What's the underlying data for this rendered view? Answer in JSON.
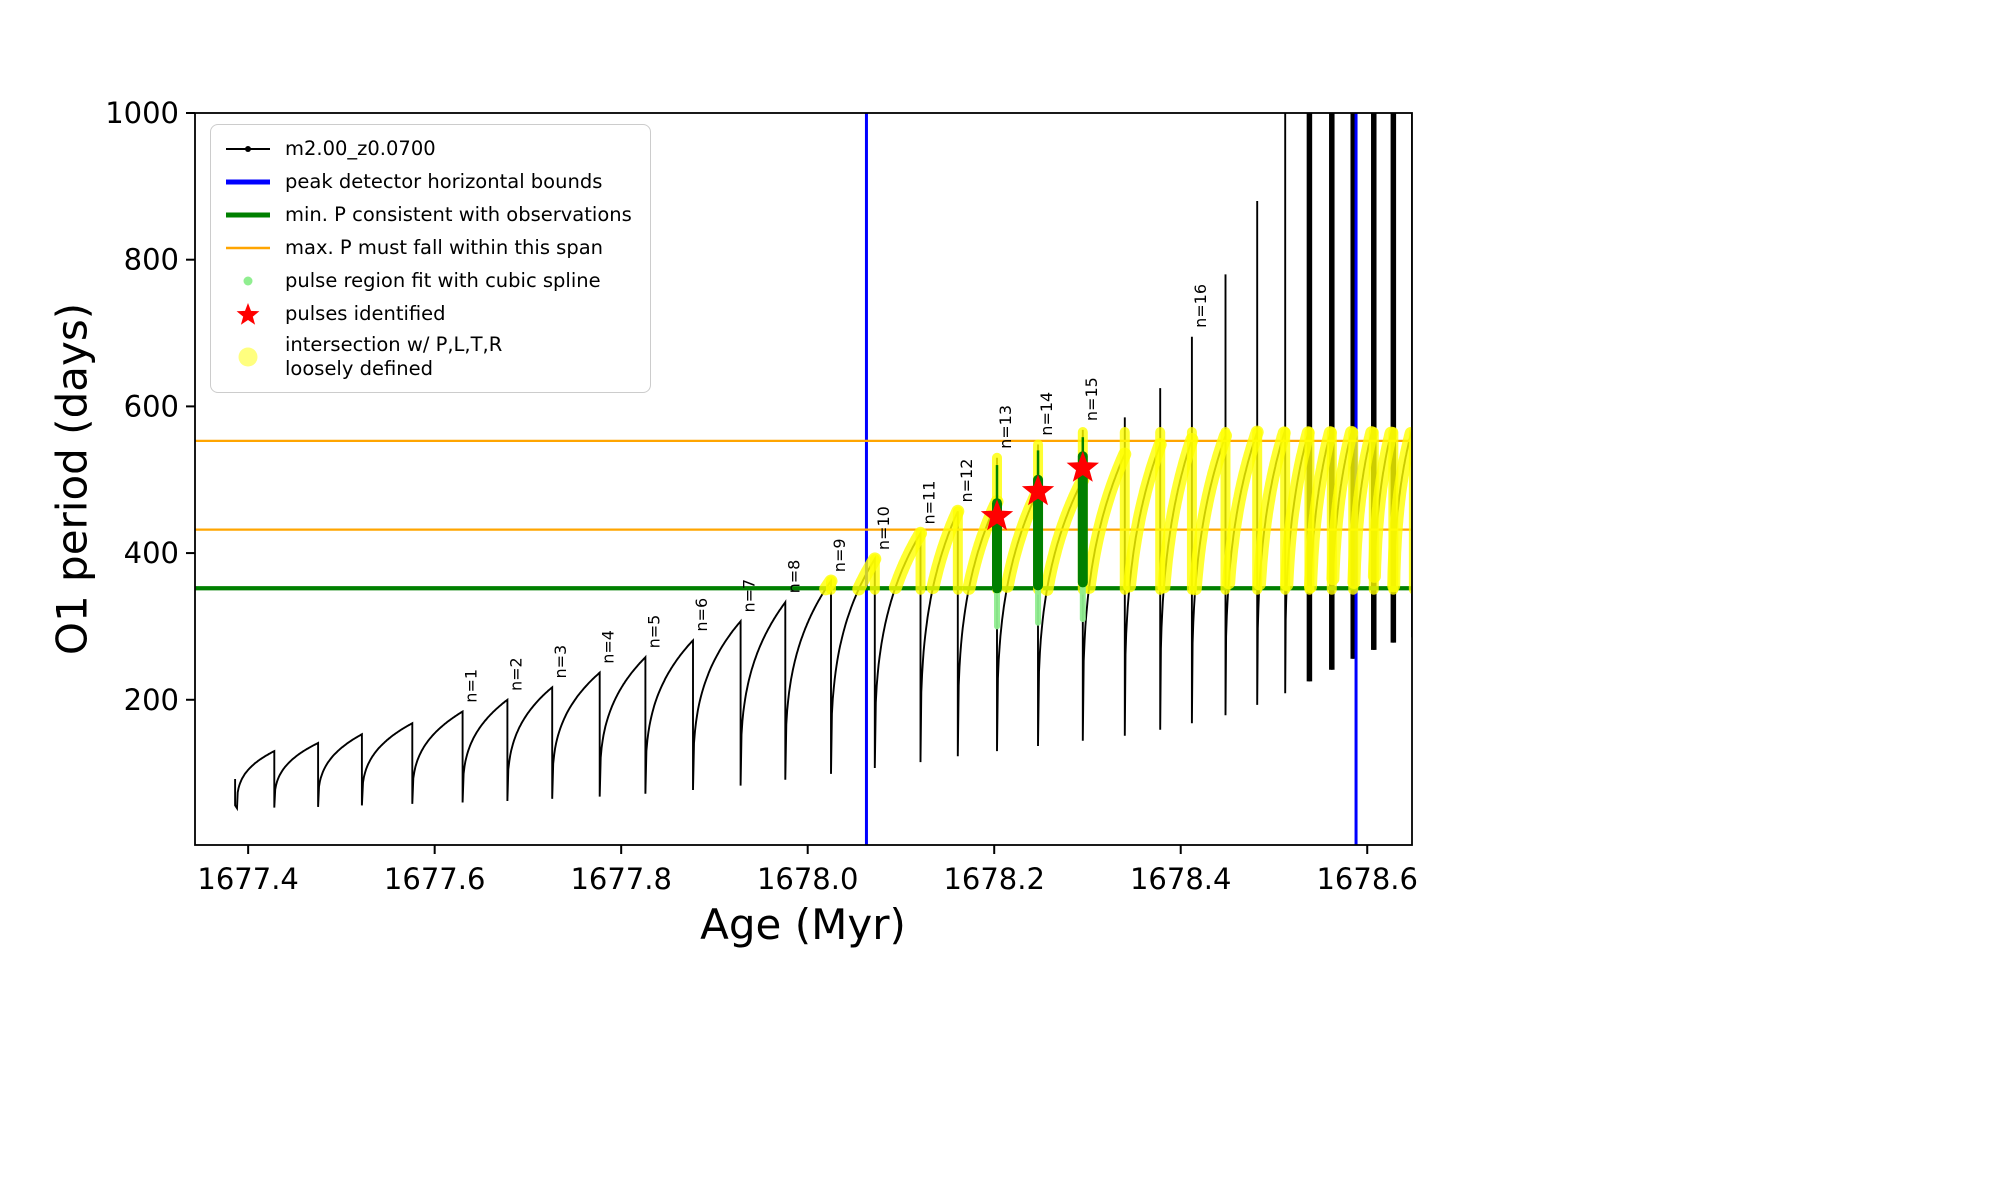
{
  "chart_data": {
    "type": "line",
    "title": "",
    "xlabel": "Age (Myr)",
    "ylabel": "O1 period (days)",
    "xlim": [
      1677.343,
      1678.648
    ],
    "ylim": [
      2,
      1000
    ],
    "x_start": 1677.388,
    "end_min": 285,
    "grid": false,
    "legend_position": "upper-left",
    "xticks": [
      1677.4,
      1677.6,
      1677.8,
      1678.0,
      1678.2,
      1678.4,
      1678.6
    ],
    "xtick_labels": [
      "1677.4",
      "1677.6",
      "1677.8",
      "1678.0",
      "1678.2",
      "1678.4",
      "1678.6"
    ],
    "yticks": [
      200,
      400,
      600,
      800,
      1000
    ],
    "ytick_labels": [
      "200",
      "400",
      "600",
      "800",
      "1000"
    ],
    "series_name": "m2.00_z0.0700",
    "peak_bounds_x": [
      1678.063,
      1678.588
    ],
    "min_p_y": 352,
    "max_p_span_y": [
      432,
      553
    ],
    "yellow_band": {
      "ymin": 350,
      "ymax": 565,
      "xmin": 1677.95
    },
    "colors": {
      "curve": "#000000",
      "bounds": "#0000ff",
      "min_p": "#008000",
      "max_p": "#ffa500",
      "spline": "#90ee90",
      "star": "#ff0000",
      "intersection": "#ffff00"
    },
    "cycles": [
      [
        1677.428,
        52,
        130,
        130,
        ""
      ],
      [
        1677.475,
        53,
        141,
        141,
        ""
      ],
      [
        1677.522,
        54,
        153,
        153,
        ""
      ],
      [
        1677.576,
        56,
        168,
        168,
        ""
      ],
      [
        1677.63,
        58,
        184,
        184,
        "n=1"
      ],
      [
        1677.678,
        60,
        200,
        200,
        "n=2"
      ],
      [
        1677.726,
        62,
        217,
        217,
        "n=3"
      ],
      [
        1677.777,
        65,
        237,
        237,
        "n=4"
      ],
      [
        1677.826,
        68,
        258,
        258,
        "n=5"
      ],
      [
        1677.877,
        72,
        281,
        281,
        "n=6"
      ],
      [
        1677.928,
        77,
        307,
        307,
        "n=7"
      ],
      [
        1677.976,
        83,
        333,
        333,
        "n=8"
      ],
      [
        1678.025,
        91,
        362,
        362,
        "n=9"
      ],
      [
        1678.072,
        99,
        392,
        392,
        "n=10"
      ],
      [
        1678.121,
        107,
        427,
        427,
        "n=11"
      ],
      [
        1678.161,
        115,
        457,
        457,
        "n=12"
      ],
      [
        1678.203,
        123,
        470,
        530,
        "n=13"
      ],
      [
        1678.247,
        130,
        485,
        548,
        "n=14"
      ],
      [
        1678.295,
        137,
        500,
        568,
        "n=15"
      ],
      [
        1678.34,
        144,
        535,
        585,
        ""
      ],
      [
        1678.378,
        151,
        548,
        625,
        ""
      ],
      [
        1678.412,
        159,
        555,
        695,
        "n=16"
      ],
      [
        1678.448,
        168,
        560,
        780,
        ""
      ],
      [
        1678.482,
        179,
        565,
        880,
        ""
      ],
      [
        1678.512,
        193,
        568,
        1010,
        ""
      ],
      [
        1678.538,
        209,
        570,
        1150,
        ""
      ],
      [
        1678.562,
        225,
        572,
        1320,
        ""
      ],
      [
        1678.585,
        241,
        574,
        1520,
        ""
      ],
      [
        1678.607,
        256,
        575,
        1760,
        ""
      ],
      [
        1678.628,
        268,
        576,
        2000,
        ""
      ],
      [
        1678.65,
        278,
        577,
        2300,
        ""
      ]
    ],
    "pulse_regions": [
      {
        "x": 1678.203,
        "spline_lo": 300,
        "bar_lo": 352,
        "bar_hi": 468,
        "whisker_hi": 520,
        "star_y": 450
      },
      {
        "x": 1678.247,
        "spline_lo": 305,
        "bar_lo": 356,
        "bar_hi": 500,
        "whisker_hi": 540,
        "star_y": 484
      },
      {
        "x": 1678.295,
        "spline_lo": 310,
        "bar_lo": 360,
        "bar_hi": 532,
        "whisker_hi": 558,
        "star_y": 516
      }
    ]
  },
  "legend": {
    "items": [
      {
        "label": "m2.00_z0.0700",
        "marker": "line-dot",
        "color": "#000000"
      },
      {
        "label": "peak detector horizontal bounds",
        "marker": "thick-line",
        "color": "#0000ff"
      },
      {
        "label": "min. P consistent with observations",
        "marker": "thick-line",
        "color": "#008000"
      },
      {
        "label": "max. P must fall within this span",
        "marker": "line",
        "color": "#ffa500"
      },
      {
        "label": "pulse region fit with cubic spline",
        "marker": "dot-small",
        "color": "#90ee90"
      },
      {
        "label": "pulses identified",
        "marker": "star",
        "color": "#ff0000"
      },
      {
        "label": "intersection w/ P,L,T,R\nloosely defined",
        "marker": "dot-large",
        "color": "#ffff00"
      }
    ]
  }
}
